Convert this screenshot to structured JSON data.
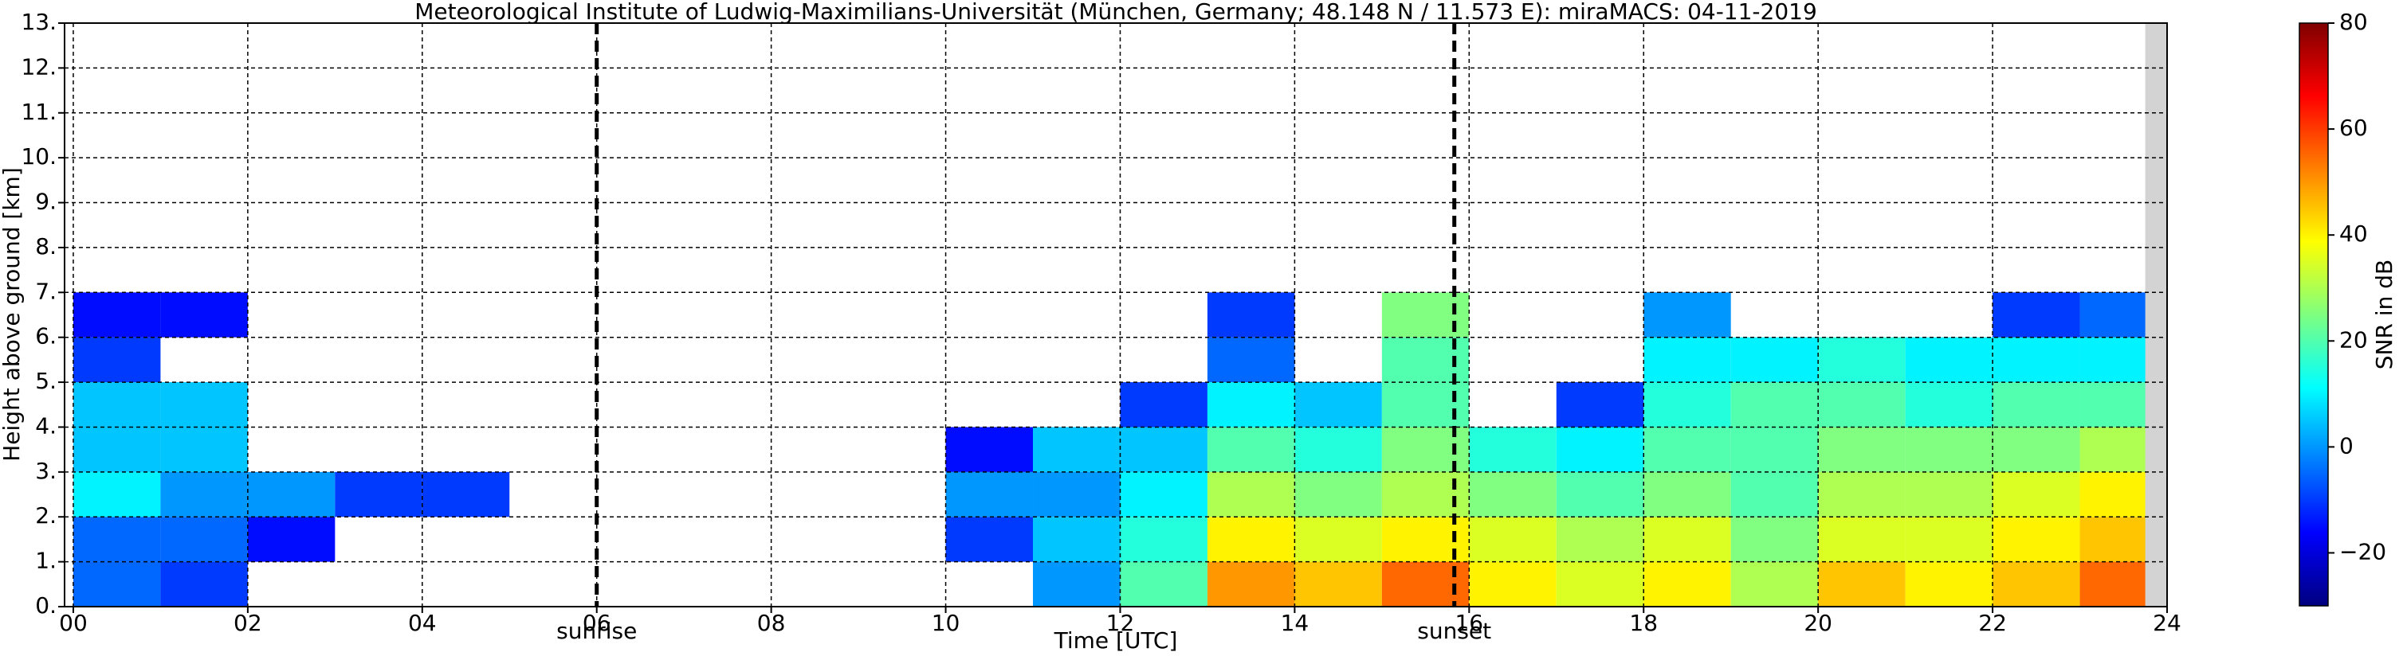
{
  "chart_data": {
    "type": "heatmap",
    "title": "Meteorological Institute of Ludwig-Maximilians-Universität (München, Germany; 48.148 N / 11.573 E):    miraMACS: 04-11-2019",
    "xlabel": "Time [UTC]",
    "ylabel": "Height above ground [km]",
    "colorbar_label": "SNR in dB",
    "colormap": "jet",
    "grid": true,
    "xlim": [
      -0.1,
      24
    ],
    "ylim": [
      0,
      13
    ],
    "clim": [
      -30,
      80
    ],
    "xticks": [
      {
        "value": 0,
        "label": "00"
      },
      {
        "value": 2,
        "label": "02"
      },
      {
        "value": 4,
        "label": "04"
      },
      {
        "value": 6,
        "label": "06"
      },
      {
        "value": 8,
        "label": "08"
      },
      {
        "value": 10,
        "label": "10"
      },
      {
        "value": 12,
        "label": "12"
      },
      {
        "value": 14,
        "label": "14"
      },
      {
        "value": 16,
        "label": "16"
      },
      {
        "value": 18,
        "label": "18"
      },
      {
        "value": 20,
        "label": "20"
      },
      {
        "value": 22,
        "label": "22"
      },
      {
        "value": 24,
        "label": "24"
      }
    ],
    "yticks": [
      {
        "value": 0,
        "label": "0."
      },
      {
        "value": 1,
        "label": "1."
      },
      {
        "value": 2,
        "label": "2."
      },
      {
        "value": 3,
        "label": "3."
      },
      {
        "value": 4,
        "label": "4."
      },
      {
        "value": 5,
        "label": "5."
      },
      {
        "value": 6,
        "label": "6."
      },
      {
        "value": 7,
        "label": "7."
      },
      {
        "value": 8,
        "label": "8."
      },
      {
        "value": 9,
        "label": "9."
      },
      {
        "value": 10,
        "label": "10."
      },
      {
        "value": 11,
        "label": "11."
      },
      {
        "value": 12,
        "label": "12."
      },
      {
        "value": 13,
        "label": "13."
      }
    ],
    "cticks": [
      {
        "value": -20,
        "label": "−20"
      },
      0,
      20,
      40,
      60,
      80
    ],
    "annotations": [
      {
        "x": 6.0,
        "label": "sunrise"
      },
      {
        "x": 15.83,
        "label": "sunset"
      }
    ],
    "missing": [
      [
        23.75,
        24
      ]
    ],
    "x_bins": [
      0,
      1,
      2,
      3,
      4,
      5,
      6,
      7,
      8,
      9,
      10,
      11,
      12,
      13,
      14,
      15,
      16,
      17,
      18,
      19,
      20,
      21,
      22,
      23,
      24
    ],
    "y_bins": [
      0,
      1,
      2,
      3,
      4,
      5,
      6,
      7
    ],
    "z": [
      [
        -5,
        -5,
        10,
        5,
        5,
        -10,
        -15
      ],
      [
        -10,
        -5,
        0,
        5,
        5,
        null,
        -15
      ],
      [
        null,
        -15,
        0,
        null,
        null,
        null,
        null
      ],
      [
        null,
        null,
        -10,
        null,
        null,
        null,
        null
      ],
      [
        null,
        null,
        -10,
        null,
        null,
        null,
        null
      ],
      [
        null,
        null,
        null,
        null,
        null,
        null,
        null
      ],
      [
        null,
        null,
        null,
        null,
        null,
        null,
        null
      ],
      [
        null,
        null,
        null,
        null,
        null,
        null,
        null
      ],
      [
        null,
        null,
        null,
        null,
        null,
        null,
        null
      ],
      [
        null,
        null,
        null,
        null,
        null,
        null,
        null
      ],
      [
        null,
        -10,
        0,
        -15,
        null,
        null,
        null
      ],
      [
        0,
        5,
        0,
        5,
        null,
        null,
        null
      ],
      [
        20,
        15,
        10,
        5,
        -10,
        null,
        null
      ],
      [
        50,
        40,
        30,
        20,
        10,
        -5,
        -10
      ],
      [
        45,
        35,
        25,
        15,
        5,
        null,
        null
      ],
      [
        55,
        40,
        30,
        25,
        20,
        20,
        25
      ],
      [
        40,
        35,
        25,
        15,
        null,
        null,
        null
      ],
      [
        35,
        30,
        20,
        10,
        -10,
        null,
        null
      ],
      [
        40,
        35,
        25,
        20,
        15,
        10,
        0
      ],
      [
        30,
        25,
        20,
        20,
        20,
        10,
        null
      ],
      [
        45,
        35,
        30,
        25,
        20,
        15,
        null
      ],
      [
        40,
        35,
        30,
        25,
        15,
        10,
        null
      ],
      [
        45,
        40,
        35,
        25,
        20,
        10,
        -10
      ],
      [
        55,
        45,
        40,
        30,
        20,
        10,
        -5
      ]
    ]
  }
}
